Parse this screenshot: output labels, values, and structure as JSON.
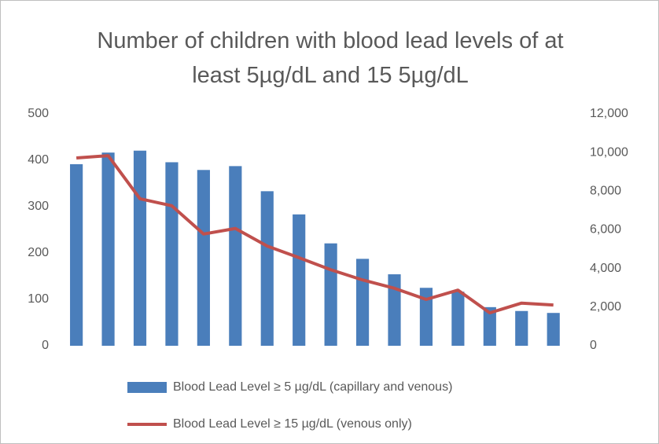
{
  "chart_data": {
    "type": "bar_line",
    "title": "Number of children with blood lead levels of at least 5µg/dL and 15 5µg/dL",
    "categories": [
      null,
      null,
      null,
      null,
      null,
      null,
      null,
      null,
      null,
      null,
      null,
      null,
      null,
      null,
      null,
      null
    ],
    "series": [
      {
        "name": "Blood Lead Level ≥ 5 µg/dL (capillary and venous)",
        "type": "bar",
        "axis": "y2",
        "color": "#4a7ebb",
        "values": [
          9400,
          10000,
          10100,
          9500,
          9100,
          9300,
          8000,
          6800,
          5300,
          4500,
          3700,
          3000,
          2800,
          2000,
          1800,
          1700
        ]
      },
      {
        "name": "Blood Lead Level ≥ 15 µg/dL (venous only)",
        "type": "line",
        "axis": "y",
        "color": "#c0504d",
        "values": [
          405,
          410,
          317,
          302,
          241,
          253,
          215,
          190,
          164,
          142,
          124,
          100,
          120,
          71,
          92,
          88
        ]
      }
    ],
    "ylim": [
      0,
      500
    ],
    "yticks": [
      0,
      100,
      200,
      300,
      400,
      500
    ],
    "y2lim": [
      0,
      12000
    ],
    "y2ticks": [
      0,
      {
        "value": 2000,
        "label": "2,000"
      },
      {
        "value": 4000,
        "label": "4,000"
      },
      {
        "value": 6000,
        "label": "6,000"
      },
      {
        "value": 8000,
        "label": "8,000"
      },
      {
        "value": 10000,
        "label": "10,000"
      },
      {
        "value": 12000,
        "label": "12,000"
      }
    ],
    "legend": "bottom"
  }
}
